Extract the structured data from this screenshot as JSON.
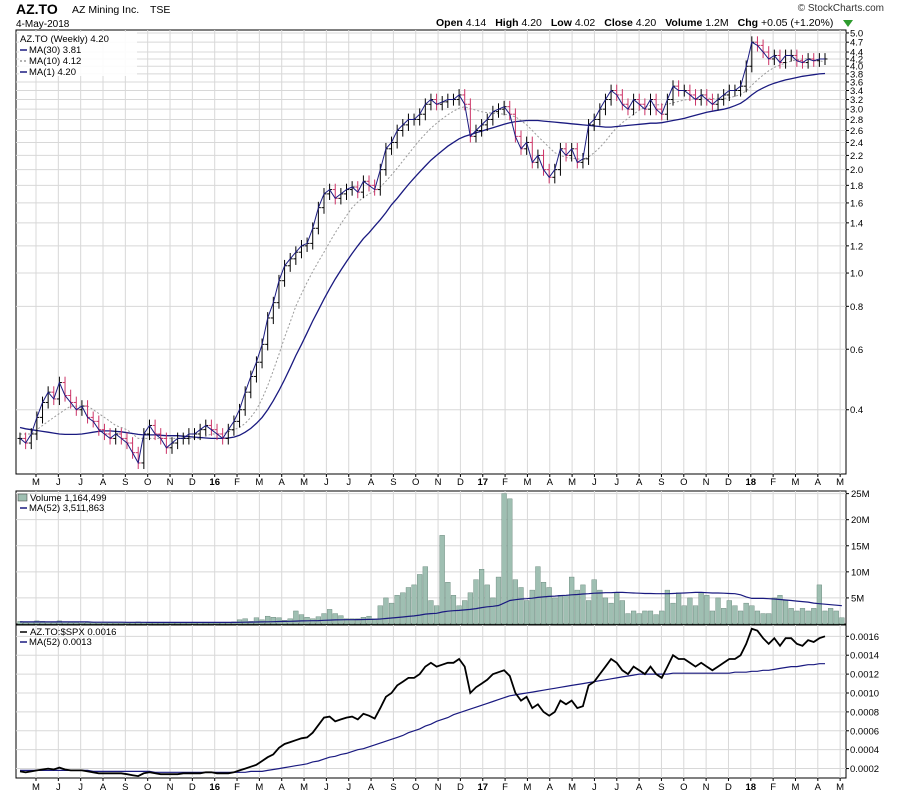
{
  "header": {
    "symbol": "AZ.TO",
    "company": "AZ Mining Inc.",
    "exchange": "TSE",
    "date": "4-May-2018",
    "copyright": "© StockCharts.com",
    "quote": [
      {
        "label": "Open",
        "value": "4.14"
      },
      {
        "label": "High",
        "value": "4.20"
      },
      {
        "label": "Low",
        "value": "4.02"
      },
      {
        "label": "Close",
        "value": "4.20"
      },
      {
        "label": "Volume",
        "value": "1.2M"
      },
      {
        "label": "Chg",
        "value": "+0.05 (+1.20%)"
      }
    ]
  },
  "colors": {
    "up_bar": "#000000",
    "down_bar": "#cc3366",
    "ma30": "#1a1a80",
    "ma10": "#9a9a9a",
    "ma1": "#1a1a80",
    "volume_fill": "#9fbfb2",
    "volume_stroke": "#5f7f72",
    "grid": "#d8d8d8",
    "ratio_line": "#000000",
    "ratio_ma": "#1a1a80",
    "up_arrow": "#2e9b2e"
  },
  "chart_data": [
    {
      "type": "ohlc",
      "id": "price",
      "title": "AZ.TO (Weekly) 4.20",
      "scale": "log",
      "ylim": [
        0.26,
        5.1
      ],
      "grid": true,
      "legend_position": "top-left",
      "legend": [
        {
          "label": "MA(30) 3.81",
          "style": "ma30"
        },
        {
          "label": "MA(10) 4.12",
          "style": "ma10"
        },
        {
          "label": "MA(1) 4.20",
          "style": "ma1"
        }
      ],
      "y_ticks": [
        "0.4",
        "0.6",
        "0.8",
        "1.0",
        "1.2",
        "1.4",
        "1.6",
        "1.8",
        "2.0",
        "2.2",
        "2.4",
        "2.6",
        "2.8",
        "3.0",
        "3.2",
        "3.4",
        "3.6",
        "3.8",
        "4.0",
        "4.2",
        "4.4",
        "4.7",
        "5.0"
      ],
      "x_labels": [
        "M",
        "J",
        "J",
        "A",
        "S",
        "O",
        "N",
        "D",
        "16",
        "F",
        "M",
        "A",
        "M",
        "J",
        "J",
        "A",
        "S",
        "O",
        "N",
        "D",
        "17",
        "F",
        "M",
        "A",
        "M",
        "J",
        "J",
        "A",
        "S",
        "O",
        "N",
        "D",
        "18",
        "F",
        "M",
        "A",
        "M"
      ],
      "close": [
        0.33,
        0.32,
        0.34,
        0.38,
        0.42,
        0.45,
        0.43,
        0.48,
        0.44,
        0.42,
        0.4,
        0.41,
        0.38,
        0.37,
        0.35,
        0.34,
        0.33,
        0.34,
        0.33,
        0.32,
        0.3,
        0.28,
        0.34,
        0.36,
        0.34,
        0.33,
        0.31,
        0.32,
        0.33,
        0.33,
        0.34,
        0.34,
        0.35,
        0.36,
        0.35,
        0.34,
        0.33,
        0.35,
        0.37,
        0.4,
        0.45,
        0.5,
        0.55,
        0.62,
        0.74,
        0.82,
        0.95,
        1.05,
        1.1,
        1.15,
        1.2,
        1.22,
        1.35,
        1.55,
        1.7,
        1.75,
        1.65,
        1.7,
        1.75,
        1.78,
        1.72,
        1.85,
        1.8,
        1.75,
        2.0,
        2.3,
        2.4,
        2.6,
        2.7,
        2.8,
        2.8,
        2.9,
        3.1,
        3.2,
        3.1,
        3.15,
        3.2,
        3.2,
        3.3,
        3.1,
        2.5,
        2.6,
        2.7,
        2.8,
        2.95,
        3.0,
        3.05,
        2.9,
        2.5,
        2.3,
        2.4,
        2.1,
        2.2,
        2.0,
        1.9,
        2.0,
        2.3,
        2.2,
        2.3,
        2.1,
        2.15,
        2.7,
        2.8,
        3.0,
        3.2,
        3.4,
        3.3,
        3.1,
        3.0,
        3.2,
        3.1,
        3.0,
        3.2,
        3.0,
        2.9,
        3.2,
        3.5,
        3.4,
        3.4,
        3.3,
        3.2,
        3.3,
        3.2,
        3.1,
        3.2,
        3.3,
        3.4,
        3.4,
        3.5,
        4.0,
        4.7,
        4.6,
        4.4,
        4.2,
        4.3,
        4.1,
        4.3,
        4.3,
        4.15,
        4.1,
        4.2,
        4.15,
        4.2,
        4.2
      ],
      "ma30": [
        0.355,
        0.352,
        0.35,
        0.348,
        0.346,
        0.344,
        0.342,
        0.34,
        0.339,
        0.339,
        0.339,
        0.34,
        0.342,
        0.344,
        0.346,
        0.347,
        0.347,
        0.346,
        0.345,
        0.343,
        0.341,
        0.339,
        0.338,
        0.338,
        0.338,
        0.337,
        0.336,
        0.336,
        0.336,
        0.335,
        0.334,
        0.333,
        0.332,
        0.331,
        0.33,
        0.33,
        0.33,
        0.331,
        0.333,
        0.337,
        0.344,
        0.353,
        0.365,
        0.38,
        0.4,
        0.425,
        0.455,
        0.49,
        0.53,
        0.575,
        0.62,
        0.67,
        0.725,
        0.78,
        0.84,
        0.9,
        0.96,
        1.02,
        1.08,
        1.14,
        1.2,
        1.26,
        1.31,
        1.37,
        1.43,
        1.5,
        1.58,
        1.65,
        1.73,
        1.81,
        1.89,
        1.97,
        2.05,
        2.13,
        2.2,
        2.27,
        2.34,
        2.4,
        2.46,
        2.5,
        2.53,
        2.56,
        2.59,
        2.62,
        2.65,
        2.68,
        2.71,
        2.74,
        2.76,
        2.77,
        2.78,
        2.78,
        2.78,
        2.77,
        2.76,
        2.75,
        2.74,
        2.73,
        2.72,
        2.71,
        2.7,
        2.69,
        2.68,
        2.67,
        2.66,
        2.66,
        2.67,
        2.68,
        2.69,
        2.7,
        2.71,
        2.72,
        2.73,
        2.73,
        2.74,
        2.76,
        2.78,
        2.8,
        2.82,
        2.85,
        2.88,
        2.91,
        2.94,
        2.96,
        2.98,
        3.0,
        3.03,
        3.07,
        3.12,
        3.2,
        3.3,
        3.39,
        3.46,
        3.52,
        3.57,
        3.61,
        3.65,
        3.68,
        3.71,
        3.74,
        3.76,
        3.78,
        3.8,
        3.81
      ],
      "ma10": [
        0.34,
        0.34,
        0.34,
        0.35,
        0.36,
        0.37,
        0.38,
        0.39,
        0.4,
        0.41,
        0.41,
        0.41,
        0.41,
        0.4,
        0.39,
        0.38,
        0.37,
        0.36,
        0.355,
        0.35,
        0.34,
        0.33,
        0.33,
        0.33,
        0.33,
        0.33,
        0.33,
        0.33,
        0.33,
        0.33,
        0.33,
        0.33,
        0.33,
        0.335,
        0.34,
        0.34,
        0.34,
        0.345,
        0.35,
        0.355,
        0.365,
        0.38,
        0.4,
        0.43,
        0.47,
        0.52,
        0.58,
        0.65,
        0.72,
        0.8,
        0.87,
        0.94,
        1.01,
        1.08,
        1.15,
        1.23,
        1.31,
        1.39,
        1.47,
        1.55,
        1.61,
        1.66,
        1.7,
        1.73,
        1.78,
        1.85,
        1.93,
        2.02,
        2.12,
        2.22,
        2.33,
        2.44,
        2.54,
        2.64,
        2.73,
        2.81,
        2.89,
        2.96,
        3.02,
        3.05,
        3.01,
        2.98,
        2.95,
        2.93,
        2.92,
        2.91,
        2.9,
        2.88,
        2.85,
        2.78,
        2.7,
        2.6,
        2.5,
        2.41,
        2.32,
        2.24,
        2.2,
        2.17,
        2.16,
        2.15,
        2.14,
        2.18,
        2.24,
        2.32,
        2.42,
        2.54,
        2.65,
        2.74,
        2.82,
        2.9,
        2.98,
        3.04,
        3.08,
        3.09,
        3.09,
        3.1,
        3.13,
        3.16,
        3.19,
        3.21,
        3.22,
        3.23,
        3.23,
        3.22,
        3.21,
        3.22,
        3.24,
        3.27,
        3.31,
        3.39,
        3.52,
        3.65,
        3.77,
        3.88,
        3.97,
        4.03,
        4.09,
        4.14,
        4.18,
        4.2,
        4.21,
        4.19,
        4.15,
        4.12
      ]
    },
    {
      "type": "bar",
      "id": "volume",
      "title": "Volume 1,164,499",
      "legend": [
        {
          "label": "MA(52) 3,511,863",
          "style": "ma"
        }
      ],
      "ylim": [
        0,
        25500000
      ],
      "y_ticks": [
        "5M",
        "10M",
        "15M",
        "20M",
        "25M"
      ],
      "y_tick_values": [
        5000000,
        10000000,
        15000000,
        20000000,
        25000000
      ],
      "values": [
        0.5,
        0.3,
        0.4,
        0.6,
        0.5,
        0.4,
        0.3,
        0.6,
        0.4,
        0.3,
        0.3,
        0.2,
        0.3,
        0.3,
        0.2,
        0.2,
        0.3,
        0.2,
        0.2,
        0.2,
        0.3,
        0.4,
        0.3,
        0.2,
        0.2,
        0.2,
        0.2,
        0.2,
        0.2,
        0.2,
        0.2,
        0.2,
        0.3,
        0.2,
        0.2,
        0.2,
        0.3,
        0.3,
        0.4,
        0.8,
        1.0,
        0.5,
        1.2,
        0.8,
        1.5,
        1.3,
        1.2,
        0.7,
        1.0,
        2.5,
        1.8,
        1.3,
        1.0,
        1.4,
        2.0,
        2.8,
        2.0,
        1.6,
        1.0,
        1.0,
        1.0,
        1.3,
        1.5,
        1.0,
        3.5,
        5.0,
        4.0,
        5.5,
        6.0,
        7.0,
        7.5,
        9.5,
        11.0,
        4.5,
        3.5,
        17.0,
        8.0,
        5.5,
        3.5,
        4.5,
        6.0,
        8.5,
        10.5,
        7.5,
        5.0,
        9.0,
        25.0,
        24.0,
        8.5,
        7.0,
        4.5,
        6.5,
        11.0,
        8.0,
        7.0,
        5.0,
        5.5,
        5.5,
        9.0,
        6.5,
        7.5,
        4.5,
        8.5,
        6.5,
        5.0,
        4.0,
        6.0,
        4.5,
        2.0,
        2.5,
        2.0,
        2.5,
        2.5,
        1.8,
        2.5,
        6.5,
        4.0,
        6.0,
        3.5,
        5.0,
        3.5,
        6.0,
        5.5,
        2.5,
        5.0,
        3.0,
        4.5,
        3.5,
        2.5,
        4.0,
        3.5,
        2.5,
        2.0,
        2.0,
        5.0,
        5.5,
        4.5,
        3.0,
        2.5,
        3.0,
        2.5,
        3.0,
        7.5,
        2.5,
        3.0,
        2.5,
        1.2
      ],
      "ma": [
        0.4,
        0.4,
        0.4,
        0.4,
        0.4,
        0.4,
        0.4,
        0.4,
        0.4,
        0.4,
        0.4,
        0.4,
        0.4,
        0.35,
        0.35,
        0.35,
        0.35,
        0.35,
        0.35,
        0.32,
        0.32,
        0.32,
        0.32,
        0.3,
        0.3,
        0.3,
        0.3,
        0.3,
        0.3,
        0.3,
        0.3,
        0.3,
        0.3,
        0.3,
        0.3,
        0.3,
        0.3,
        0.3,
        0.3,
        0.32,
        0.34,
        0.36,
        0.38,
        0.4,
        0.42,
        0.45,
        0.48,
        0.5,
        0.52,
        0.56,
        0.6,
        0.62,
        0.64,
        0.66,
        0.7,
        0.75,
        0.78,
        0.8,
        0.82,
        0.82,
        0.84,
        0.86,
        0.88,
        0.9,
        0.95,
        1.05,
        1.15,
        1.25,
        1.35,
        1.45,
        1.55,
        1.7,
        1.9,
        2.0,
        2.05,
        2.3,
        2.45,
        2.55,
        2.6,
        2.7,
        2.8,
        2.95,
        3.15,
        3.3,
        3.4,
        3.55,
        4.0,
        4.5,
        4.65,
        4.8,
        4.85,
        4.95,
        5.1,
        5.2,
        5.3,
        5.35,
        5.45,
        5.5,
        5.6,
        5.65,
        5.75,
        5.8,
        5.9,
        5.95,
        6.0,
        6.0,
        6.05,
        6.05,
        6.0,
        5.95,
        5.9,
        5.85,
        5.85,
        5.8,
        5.8,
        5.8,
        5.85,
        5.9,
        5.95,
        6.0,
        6.05,
        6.05,
        6.0,
        5.95,
        5.95,
        5.9,
        5.85,
        5.8,
        5.6,
        5.2,
        4.9,
        4.9,
        4.9,
        4.85,
        4.8,
        4.7,
        4.6,
        4.5,
        4.4,
        4.3,
        4.2,
        4.0,
        3.9,
        3.8,
        3.7,
        3.6,
        3.5
      ]
    },
    {
      "type": "line",
      "id": "ratio",
      "title": "AZ.TO:$SPX 0.0016",
      "legend": [
        {
          "label": "MA(52) 0.0013",
          "style": "ma"
        }
      ],
      "ylim": [
        0.0001,
        0.00172
      ],
      "y_ticks": [
        "0.0002",
        "0.0004",
        "0.0006",
        "0.0008",
        "0.0010",
        "0.0012",
        "0.0014",
        "0.0016"
      ],
      "y_tick_values": [
        0.0002,
        0.0004,
        0.0006,
        0.0008,
        0.001,
        0.0012,
        0.0014,
        0.0016
      ],
      "values": [
        0.00017,
        0.00016,
        0.00017,
        0.00018,
        0.00019,
        0.0002,
        0.00019,
        0.00021,
        0.00019,
        0.00018,
        0.00018,
        0.00018,
        0.00017,
        0.00016,
        0.00015,
        0.00015,
        0.00015,
        0.00015,
        0.00015,
        0.00014,
        0.00013,
        0.00012,
        0.00015,
        0.00016,
        0.00015,
        0.00014,
        0.00014,
        0.00014,
        0.00014,
        0.00015,
        0.00015,
        0.00015,
        0.00015,
        0.00016,
        0.00016,
        0.00015,
        0.00015,
        0.00015,
        0.00016,
        0.00018,
        0.0002,
        0.00022,
        0.00024,
        0.00028,
        0.00032,
        0.00035,
        0.00042,
        0.00046,
        0.00048,
        0.0005,
        0.00052,
        0.00053,
        0.00058,
        0.00066,
        0.00074,
        0.00075,
        0.0007,
        0.00072,
        0.00074,
        0.00075,
        0.00072,
        0.00078,
        0.00076,
        0.00073,
        0.00084,
        0.00096,
        0.001,
        0.00108,
        0.00112,
        0.00116,
        0.00116,
        0.0012,
        0.00128,
        0.00132,
        0.00128,
        0.0013,
        0.00132,
        0.00132,
        0.00136,
        0.00128,
        0.001,
        0.00106,
        0.0011,
        0.00114,
        0.0012,
        0.00122,
        0.00124,
        0.00118,
        0.001,
        0.00092,
        0.00096,
        0.00084,
        0.00088,
        0.0008,
        0.00076,
        0.0008,
        0.00092,
        0.00088,
        0.00092,
        0.00084,
        0.00086,
        0.00108,
        0.00112,
        0.0012,
        0.00128,
        0.00136,
        0.00132,
        0.00124,
        0.0012,
        0.00128,
        0.00124,
        0.0012,
        0.00128,
        0.0012,
        0.00116,
        0.00128,
        0.0014,
        0.00136,
        0.00136,
        0.00132,
        0.00128,
        0.00132,
        0.00128,
        0.00124,
        0.00128,
        0.00132,
        0.00136,
        0.00136,
        0.0014,
        0.00152,
        0.00168,
        0.00166,
        0.00158,
        0.00152,
        0.00158,
        0.0015,
        0.00158,
        0.00158,
        0.00152,
        0.0015,
        0.00156,
        0.00154,
        0.00158,
        0.0016
      ],
      "ma": [
        0.00018,
        0.00018,
        0.00018,
        0.00018,
        0.00018,
        0.00018,
        0.00018,
        0.00018,
        0.00018,
        0.00018,
        0.00018,
        0.00018,
        0.00018,
        0.00017,
        0.00017,
        0.00017,
        0.00017,
        0.00017,
        0.00017,
        0.00017,
        0.00017,
        0.00017,
        0.00017,
        0.00017,
        0.00016,
        0.00016,
        0.00016,
        0.00016,
        0.00016,
        0.00016,
        0.00016,
        0.00016,
        0.00016,
        0.00016,
        0.00016,
        0.00016,
        0.00016,
        0.00016,
        0.00016,
        0.00016,
        0.00016,
        0.00017,
        0.00017,
        0.00017,
        0.00018,
        0.00019,
        0.0002,
        0.00021,
        0.00022,
        0.00023,
        0.00024,
        0.00025,
        0.00027,
        0.00028,
        0.0003,
        0.00032,
        0.00033,
        0.00035,
        0.00036,
        0.00038,
        0.0004,
        0.00041,
        0.00043,
        0.00045,
        0.00047,
        0.00049,
        0.00051,
        0.00053,
        0.00055,
        0.00058,
        0.0006,
        0.00062,
        0.00065,
        0.00067,
        0.0007,
        0.00072,
        0.00074,
        0.00077,
        0.00079,
        0.00081,
        0.00083,
        0.00085,
        0.00087,
        0.00089,
        0.00091,
        0.00093,
        0.00095,
        0.00097,
        0.00098,
        0.00099,
        0.001,
        0.00101,
        0.00102,
        0.00103,
        0.00104,
        0.00105,
        0.00106,
        0.00107,
        0.00108,
        0.00109,
        0.0011,
        0.00111,
        0.00112,
        0.00113,
        0.00114,
        0.00115,
        0.00116,
        0.00117,
        0.00118,
        0.00119,
        0.0012,
        0.0012,
        0.0012,
        0.0012,
        0.0012,
        0.0012,
        0.00121,
        0.00121,
        0.00121,
        0.00121,
        0.00121,
        0.00121,
        0.00121,
        0.00121,
        0.00121,
        0.00121,
        0.00121,
        0.00122,
        0.00122,
        0.00122,
        0.00123,
        0.00123,
        0.00124,
        0.00124,
        0.00125,
        0.00126,
        0.00127,
        0.00128,
        0.00128,
        0.00129,
        0.0013,
        0.0013,
        0.00131,
        0.00131
      ]
    }
  ]
}
